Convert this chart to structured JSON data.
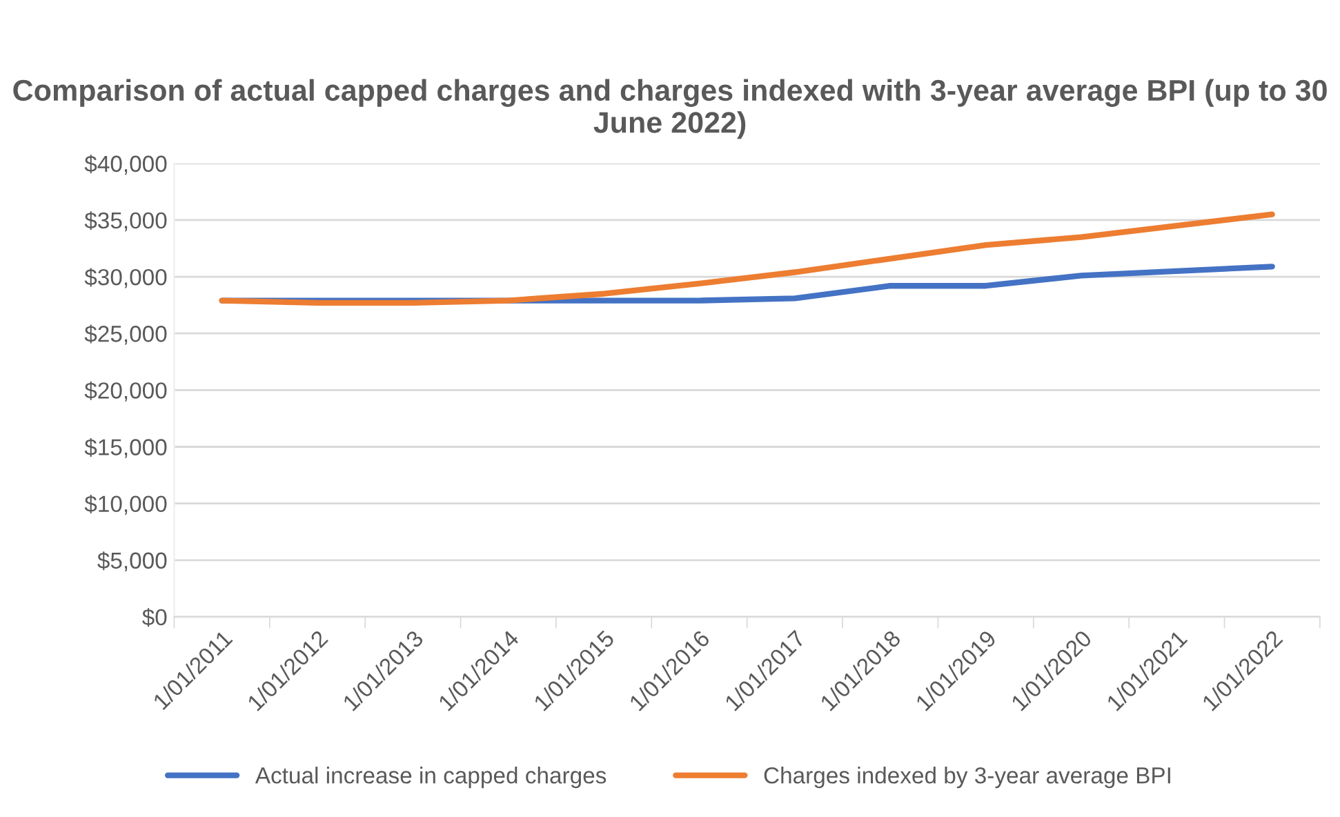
{
  "chart_data": {
    "type": "line",
    "title": "Comparison of actual capped charges and charges indexed with 3-year average BPI (up to 30 June 2022)",
    "categories": [
      "1/01/2011",
      "1/01/2012",
      "1/01/2013",
      "1/01/2014",
      "1/01/2015",
      "1/01/2016",
      "1/01/2017",
      "1/01/2018",
      "1/01/2019",
      "1/01/2020",
      "1/01/2021",
      "1/01/2022"
    ],
    "series": [
      {
        "name": "Actual increase in capped charges",
        "color": "#4472c4",
        "values": [
          27900,
          27900,
          27900,
          27900,
          27900,
          27900,
          28100,
          29200,
          29200,
          30100,
          30500,
          30900
        ]
      },
      {
        "name": "Charges indexed by 3-year average BPI",
        "color": "#ed7d31",
        "values": [
          27900,
          27700,
          27700,
          27900,
          28500,
          29400,
          30400,
          31600,
          32800,
          33500,
          34500,
          35500
        ]
      }
    ],
    "ylim": [
      0,
      40000
    ],
    "yticks": [
      {
        "value": 0,
        "label": "$0"
      },
      {
        "value": 5000,
        "label": "$5,000"
      },
      {
        "value": 10000,
        "label": "$10,000"
      },
      {
        "value": 15000,
        "label": "$15,000"
      },
      {
        "value": 20000,
        "label": "$20,000"
      },
      {
        "value": 25000,
        "label": "$25,000"
      },
      {
        "value": 30000,
        "label": "$30,000"
      },
      {
        "value": 35000,
        "label": "$35,000"
      },
      {
        "value": 40000,
        "label": "$40,000"
      }
    ],
    "grid": "y",
    "legend": "bottom",
    "marker": "none",
    "line_style": "solid"
  }
}
